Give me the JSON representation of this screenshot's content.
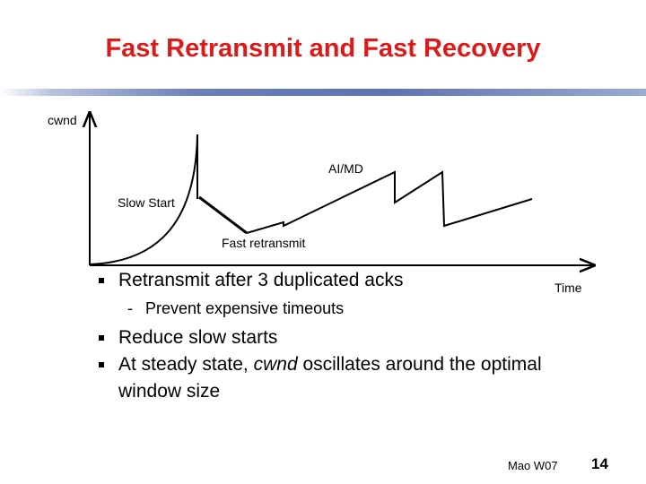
{
  "slide": {
    "title": "Fast Retransmit and Fast Recovery",
    "footer": "Mao W07",
    "page_number": "14",
    "title_color": "#dd1a1a"
  },
  "diagram": {
    "y_axis_label": "cwnd",
    "x_axis_label": "Time",
    "labels": {
      "aimd": "AI/MD",
      "slow_start": "Slow Start",
      "fast_retransmit": "Fast retransmit"
    }
  },
  "bullets": [
    {
      "text": "Retransmit after 3 duplicated acks",
      "sub": [
        "Prevent expensive timeouts"
      ]
    },
    {
      "text": "Reduce slow starts"
    },
    {
      "text_before": "At steady state, ",
      "text_emph": "cwnd",
      "text_after": " oscillates around the optimal window size"
    }
  ]
}
